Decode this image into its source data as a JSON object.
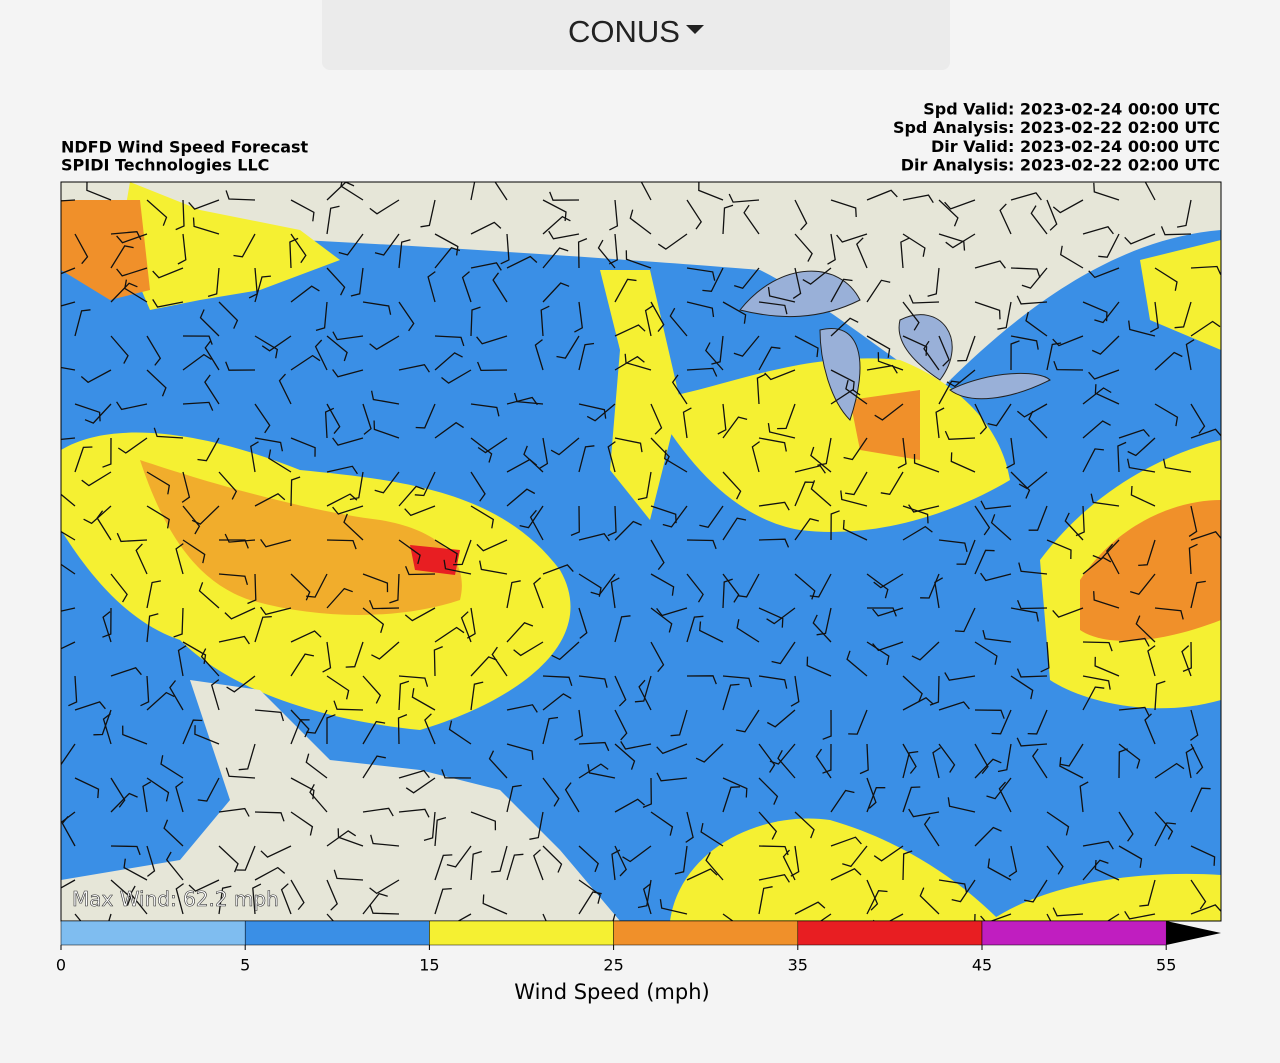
{
  "header": {
    "selector": "CONUS"
  },
  "map": {
    "title": "NDFD Wind Speed Forecast",
    "subtitle": "SPIDI Technologies LLC",
    "info": [
      "Spd Valid: 2023-02-24 00:00 UTC",
      "Spd Analysis: 2023-02-22 02:00 UTC",
      "Dir Valid: 2023-02-24 00:00 UTC",
      "Dir Analysis: 2023-02-22 02:00 UTC"
    ],
    "max_wind": "Max Wind: 62.2 mph"
  },
  "colorbar": {
    "ticks": [
      0,
      5,
      15,
      25,
      35,
      45,
      55
    ],
    "colors": [
      "#7fbdf0",
      "#3a8fe6",
      "#f5f032",
      "#f0902a",
      "#e81e22",
      "#c01ec0"
    ],
    "extend_color": "#000000",
    "label": "Wind Speed (mph)"
  }
}
